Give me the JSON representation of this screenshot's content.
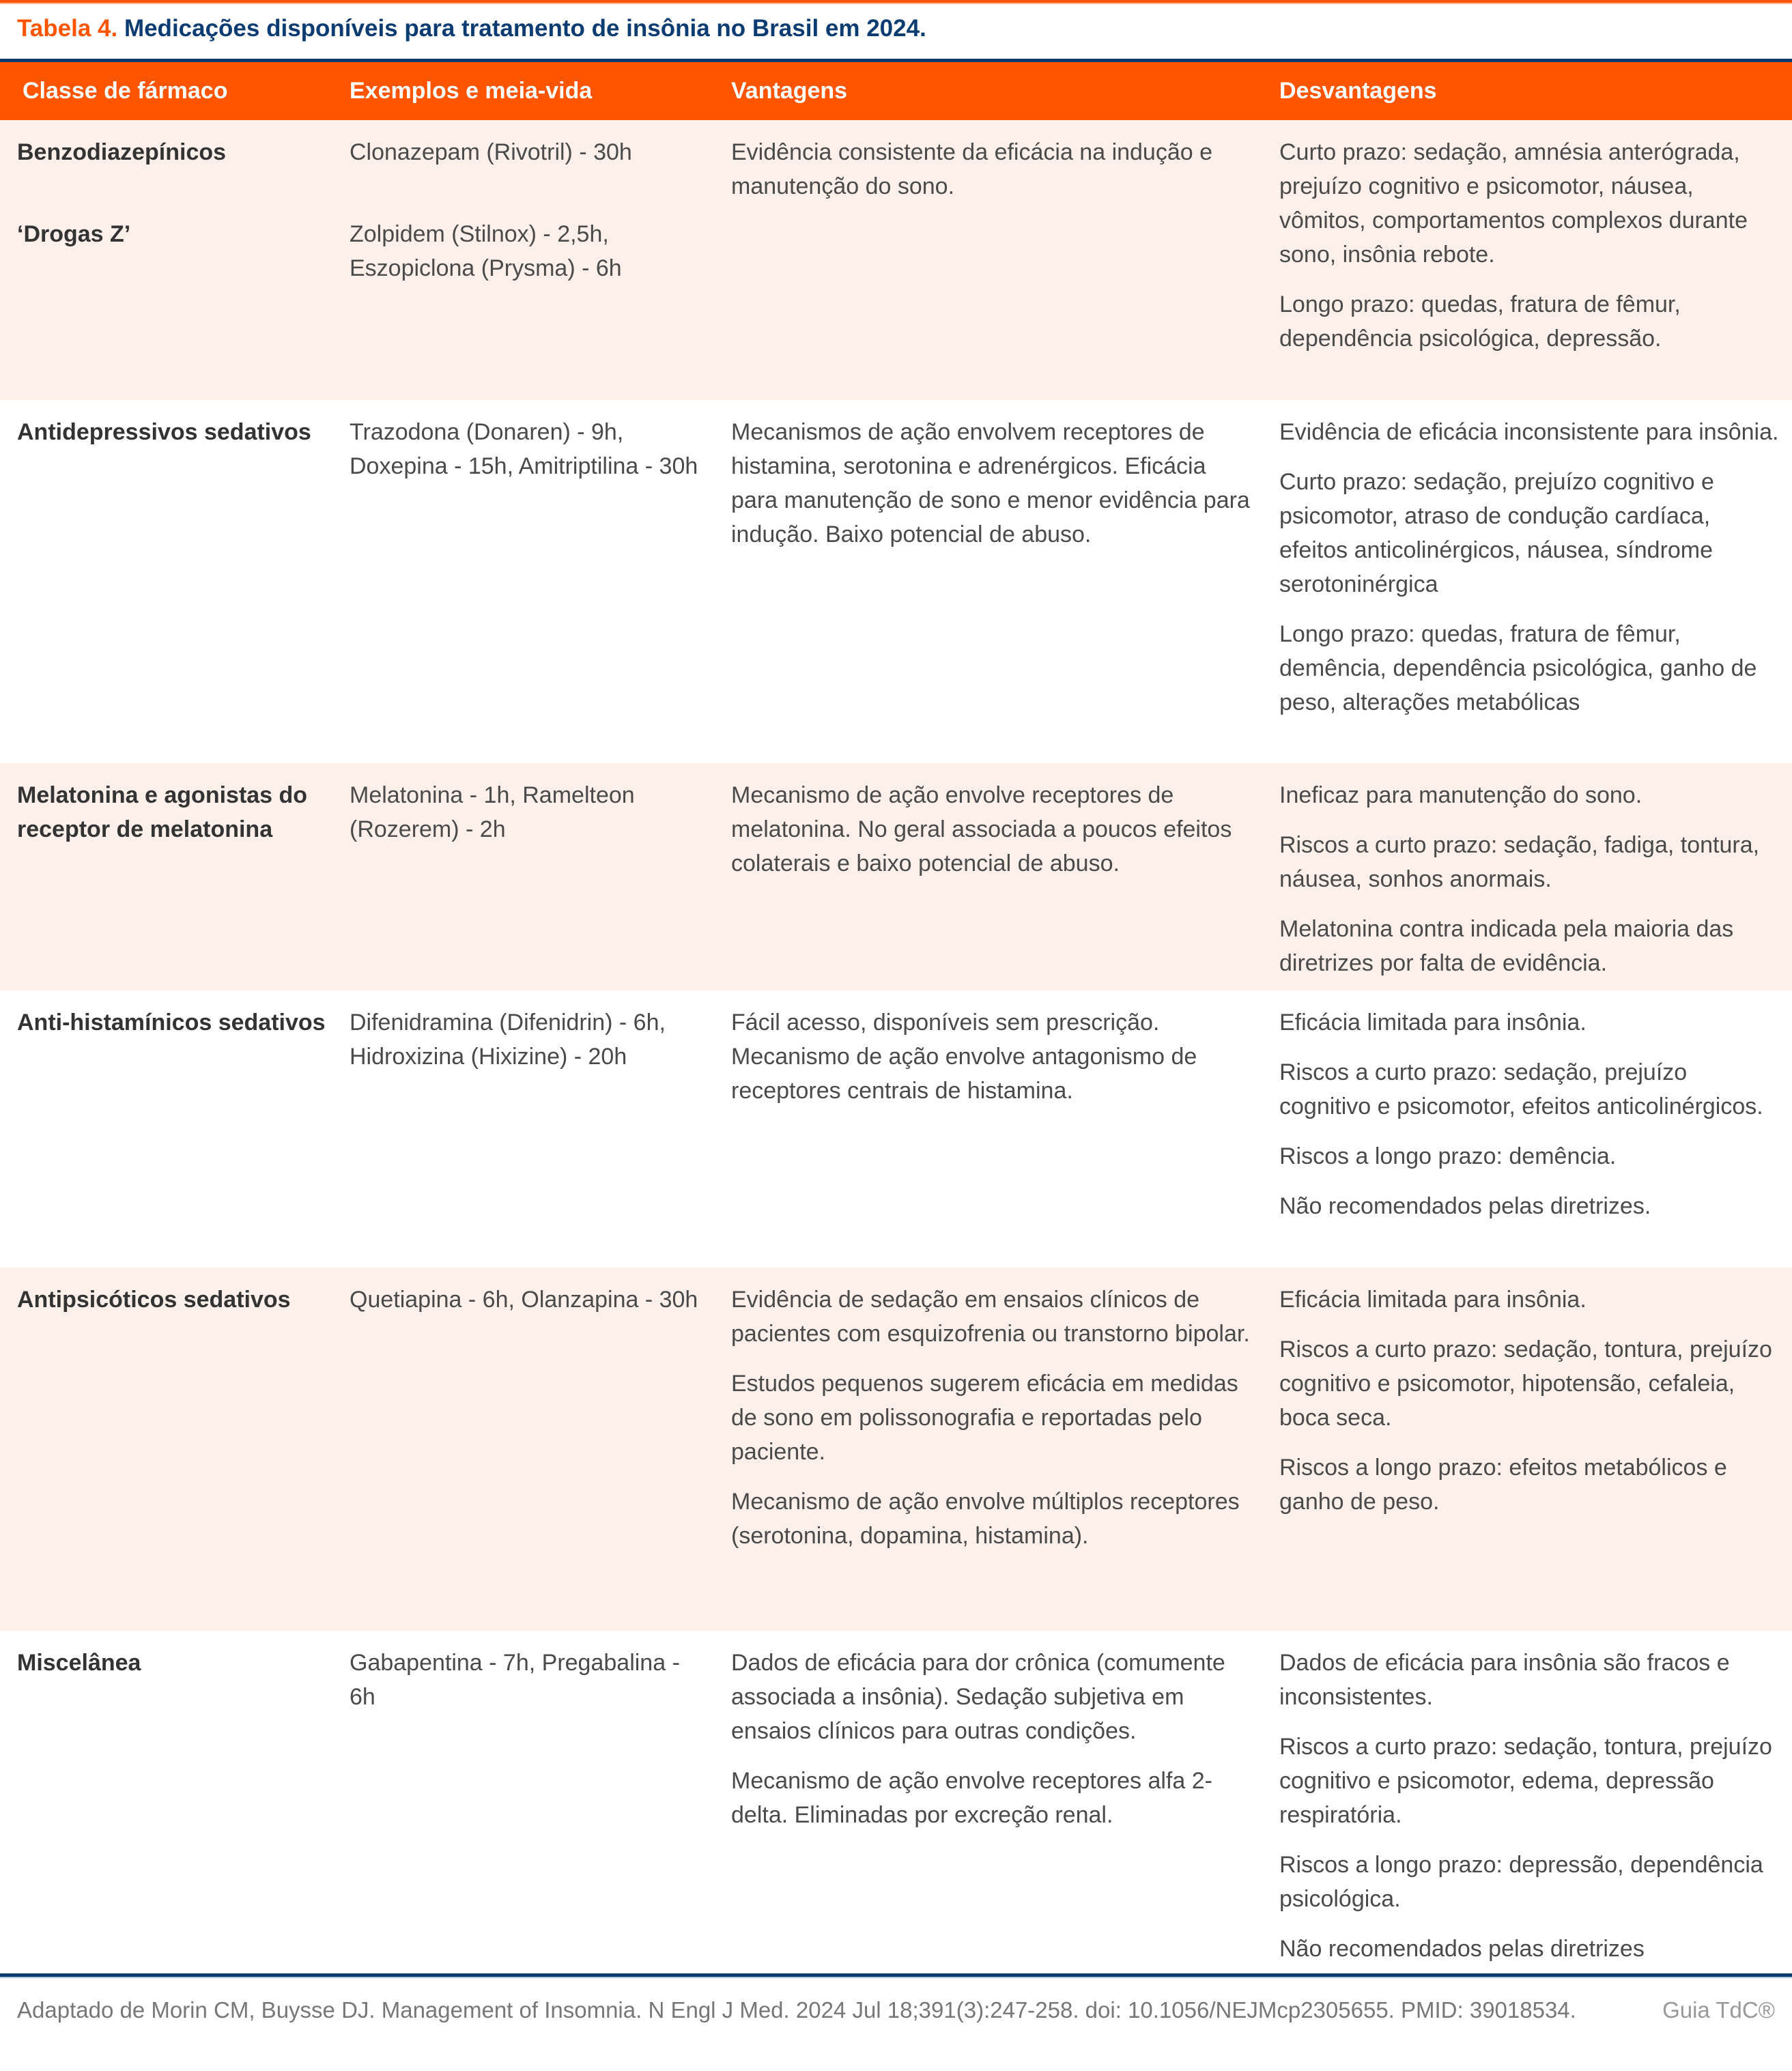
{
  "title": {
    "label": "Tabela 4.",
    "text": "Medicações disponíveis para tratamento de insônia no Brasil em 2024."
  },
  "colors": {
    "accent": "#ff5500",
    "brand_blue": "#0d3c73",
    "row_shade": "#fdf0eb"
  },
  "headers": [
    "Classe de fármaco",
    "Exemplos e meia-vida",
    "Vantagens",
    "Desvantagens"
  ],
  "rows": [
    {
      "classes": [
        "Benzodiazepínicos",
        "‘Drogas Z’"
      ],
      "examples": [
        "Clonazepam (Rivotril) - 30h",
        "Zolpidem (Stilnox) - 2,5h, Eszopiclona (Prysma) - 6h"
      ],
      "advantages": [
        "Evidência consistente da eficácia na indução e manutenção do sono."
      ],
      "disadvantages": [
        "Curto prazo: sedação, amnésia anterógrada, prejuízo cognitivo e psicomotor, náusea, vômitos, comportamentos complexos durante sono, insônia rebote.",
        "Longo prazo: quedas, fratura de fêmur, dependência psicológica, depressão."
      ]
    },
    {
      "classes": [
        "Antidepressivos sedativos"
      ],
      "examples": [
        "Trazodona (Donaren) - 9h, Doxepina - 15h, Amitriptilina - 30h"
      ],
      "advantages": [
        "Mecanismos de ação envolvem receptores de histamina, serotonina e adrenérgicos. Eficácia para manutenção de sono e menor evidência para indução. Baixo potencial de abuso."
      ],
      "disadvantages": [
        "Evidência de eficácia inconsistente para insônia.",
        "Curto prazo: sedação, prejuízo cognitivo e psicomotor, atraso de condução cardíaca, efeitos anticolinérgicos, náusea, síndrome serotoninérgica",
        "Longo prazo: quedas, fratura de fêmur, demência, dependência psicológica, ganho de peso, alterações metabólicas"
      ]
    },
    {
      "classes": [
        "Melatonina e agonistas do receptor de melatonina"
      ],
      "examples": [
        "Melatonina - 1h, Ramelteon (Rozerem) - 2h"
      ],
      "advantages": [
        "Mecanismo de ação envolve receptores de melatonina. No geral associada a poucos efeitos colaterais e baixo potencial de abuso."
      ],
      "disadvantages": [
        "Ineficaz para manutenção do sono.",
        "Riscos a curto prazo: sedação, fadiga, tontura, náusea, sonhos anormais.",
        "Melatonina contra indicada pela maioria das diretrizes por falta de evidência."
      ]
    },
    {
      "classes": [
        "Anti-histamínicos sedativos"
      ],
      "examples": [
        "Difenidramina (Difenidrin) - 6h, Hidroxizina (Hixizine) - 20h"
      ],
      "advantages": [
        "Fácil acesso, disponíveis sem prescrição. Mecanismo de ação envolve antagonismo de receptores centrais de histamina."
      ],
      "disadvantages": [
        "Eficácia limitada para insônia.",
        "Riscos a curto prazo: sedação, prejuízo cognitivo e psicomotor, efeitos anticolinérgicos.",
        "Riscos a longo prazo: demência.",
        "Não recomendados pelas diretrizes."
      ]
    },
    {
      "classes": [
        "Antipsicóticos sedativos"
      ],
      "examples": [
        "Quetiapina - 6h, Olanzapina - 30h"
      ],
      "advantages": [
        "Evidência de sedação em ensaios clínicos de pacientes com esquizofrenia ou transtorno bipolar.",
        "Estudos pequenos sugerem eficácia em medidas de sono em polissonografia e reportadas pelo paciente.",
        "Mecanismo de ação envolve múltiplos receptores (serotonina, dopamina, histamina)."
      ],
      "disadvantages": [
        "Eficácia limitada para insônia.",
        "Riscos a curto prazo: sedação, tontura, prejuízo cognitivo e psicomotor, hipotensão, cefaleia, boca seca.",
        "Riscos a longo prazo: efeitos metabólicos e ganho de peso."
      ]
    },
    {
      "classes": [
        "Miscelânea"
      ],
      "examples": [
        "Gabapentina - 7h, Pregabalina - 6h"
      ],
      "advantages": [
        "Dados de eficácia para dor crônica (comumente associada a insônia). Sedação subjetiva em ensaios clínicos para outras condições.",
        "Mecanismo de ação envolve receptores alfa 2-delta. Eliminadas por excreção renal."
      ],
      "disadvantages": [
        "Dados de eficácia para insônia são fracos e inconsistentes.",
        "Riscos a curto prazo: sedação, tontura, prejuízo cognitivo e psicomotor, edema, depressão respiratória.",
        "Riscos a longo prazo: depressão, dependência psicológica.",
        "Não recomendados pelas diretrizes"
      ]
    }
  ],
  "footer": {
    "citation": "Adaptado de Morin CM, Buysse DJ. Management of Insomnia. N Engl J Med. 2024 Jul 18;391(3):247-258. doi: 10.1056/NEJMcp2305655. PMID: 39018534.",
    "brand": "Guia TdC®"
  }
}
